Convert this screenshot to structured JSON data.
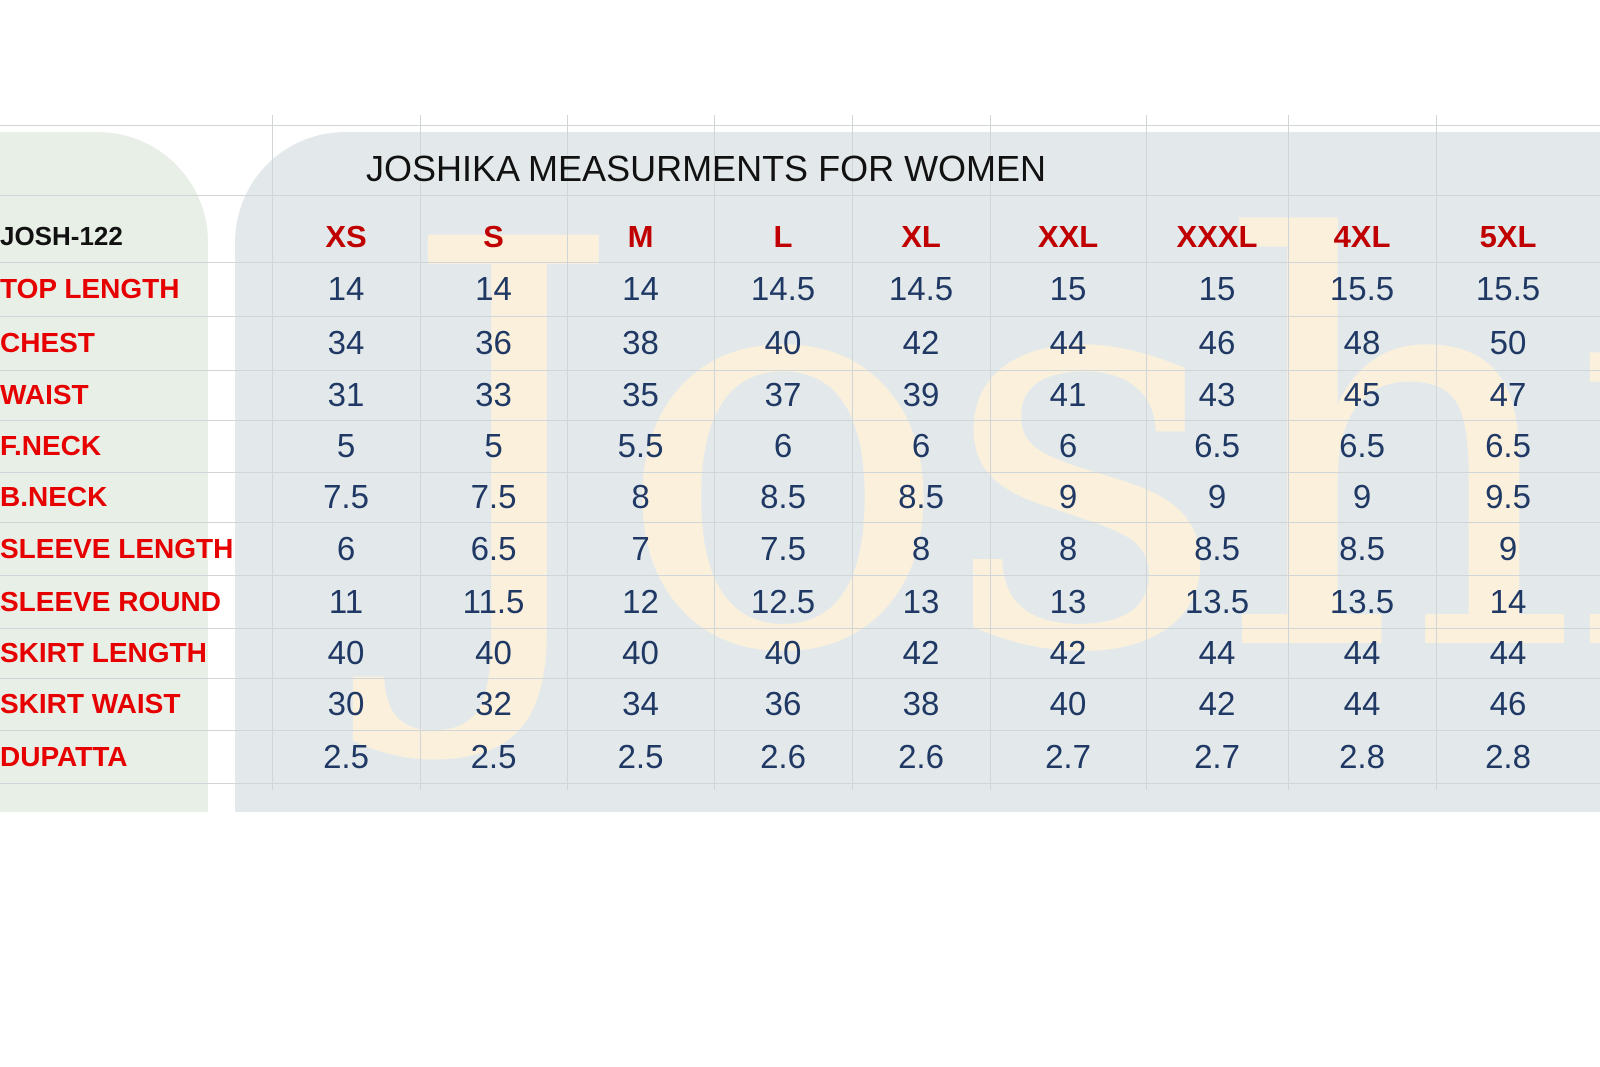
{
  "title": "JOSHIKA MEASURMENTS FOR WOMEN",
  "watermark": "Joshika",
  "table": {
    "code": "JOSH-122",
    "sizes": [
      "XS",
      "S",
      "M",
      "L",
      "XL",
      "XXL",
      "XXXL",
      "4XL",
      "5XL"
    ],
    "rows": [
      {
        "label": "TOP LENGTH",
        "values": [
          14,
          14,
          14,
          14.5,
          14.5,
          15,
          15,
          15.5,
          15.5
        ]
      },
      {
        "label": "CHEST",
        "values": [
          34,
          36,
          38,
          40,
          42,
          44,
          46,
          48,
          50
        ]
      },
      {
        "label": "WAIST",
        "values": [
          31,
          33,
          35,
          37,
          39,
          41,
          43,
          45,
          47
        ]
      },
      {
        "label": "F.NECK",
        "values": [
          5,
          5,
          5.5,
          6,
          6,
          6,
          6.5,
          6.5,
          6.5
        ]
      },
      {
        "label": "B.NECK",
        "values": [
          7.5,
          7.5,
          8,
          8.5,
          8.5,
          9,
          9,
          9,
          9.5
        ]
      },
      {
        "label": "SLEEVE LENGTH",
        "values": [
          6,
          6.5,
          7,
          7.5,
          8,
          8,
          8.5,
          8.5,
          9
        ]
      },
      {
        "label": "SLEEVE ROUND",
        "values": [
          11,
          11.5,
          12,
          12.5,
          13,
          13,
          13.5,
          13.5,
          14
        ]
      },
      {
        "label": "SKIRT LENGTH",
        "values": [
          40,
          40,
          40,
          40,
          42,
          42,
          44,
          44,
          44
        ]
      },
      {
        "label": "SKIRT WAIST",
        "values": [
          30,
          32,
          34,
          36,
          38,
          40,
          42,
          44,
          46
        ]
      },
      {
        "label": "DUPATTA",
        "values": [
          2.5,
          2.5,
          2.5,
          2.6,
          2.6,
          2.7,
          2.7,
          2.8,
          2.8
        ]
      }
    ]
  }
}
